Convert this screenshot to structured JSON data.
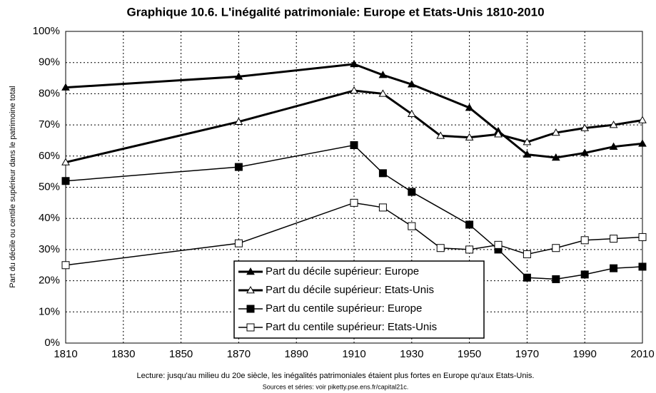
{
  "chart_data": {
    "type": "line",
    "title": "Graphique 10.6. L'inégalité patrimoniale: Europe et Etats-Unis 1810-2010",
    "y_label": "Part du décile ou centile supérieur dans le patrimoine total",
    "notes": [
      "Lecture: jusqu'au milieu du 20e siècle, les inégalités patrimoniales étaient plus fortes en Europe qu'aux Etats-Unis.",
      "Sources et séries: voir piketty.pse.ens.fr/capital21c."
    ],
    "xlim": [
      1810,
      2010
    ],
    "xticks": [
      1810,
      1830,
      1850,
      1870,
      1890,
      1910,
      1930,
      1950,
      1970,
      1990,
      2010
    ],
    "ylim": [
      0,
      100
    ],
    "yticks": [
      {
        "value": 0,
        "label": "0%"
      },
      {
        "value": 10,
        "label": "10%"
      },
      {
        "value": 20,
        "label": "20%"
      },
      {
        "value": 30,
        "label": "30%"
      },
      {
        "value": 40,
        "label": "40%"
      },
      {
        "value": 50,
        "label": "50%"
      },
      {
        "value": 60,
        "label": "60%"
      },
      {
        "value": 70,
        "label": "70%"
      },
      {
        "value": 80,
        "label": "80%"
      },
      {
        "value": 90,
        "label": "90%"
      },
      {
        "value": 100,
        "label": "100%"
      }
    ],
    "grid": true,
    "legend": "bottom",
    "series": [
      {
        "name": "Part du décile supérieur: Europe",
        "color": "#000000",
        "marker": "triangle",
        "filled": true,
        "line_width": 3,
        "x": [
          1810,
          1870,
          1910,
          1920,
          1930,
          1950,
          1960,
          1970,
          1980,
          1990,
          2000,
          2010
        ],
        "values": [
          82,
          85.5,
          89.5,
          86,
          83,
          75.5,
          68,
          60.5,
          59.5,
          61,
          63,
          64
        ]
      },
      {
        "name": "Part du décile supérieur: Etats-Unis",
        "color": "#000000",
        "marker": "triangle",
        "filled": false,
        "line_width": 3,
        "x": [
          1810,
          1870,
          1910,
          1920,
          1930,
          1940,
          1950,
          1960,
          1970,
          1980,
          1990,
          2000,
          2010
        ],
        "values": [
          58,
          71,
          81,
          80,
          73.5,
          66.5,
          66,
          67,
          64.5,
          67.5,
          69,
          70,
          71.5
        ]
      },
      {
        "name": "Part du centile supérieur: Europe",
        "color": "#000000",
        "marker": "square",
        "filled": true,
        "line_width": 1.5,
        "x": [
          1810,
          1870,
          1910,
          1920,
          1930,
          1950,
          1960,
          1970,
          1980,
          1990,
          2000,
          2010
        ],
        "values": [
          52,
          56.5,
          63.5,
          54.5,
          48.5,
          38,
          30,
          21,
          20.5,
          22,
          24,
          24.5
        ]
      },
      {
        "name": "Part du centile supérieur: Etats-Unis",
        "color": "#000000",
        "marker": "square",
        "filled": false,
        "line_width": 1.5,
        "x": [
          1810,
          1870,
          1910,
          1920,
          1930,
          1940,
          1950,
          1960,
          1970,
          1980,
          1990,
          2000,
          2010
        ],
        "values": [
          25,
          32,
          45,
          43.5,
          37.5,
          30.5,
          30,
          31.5,
          28.5,
          30.5,
          33,
          33.5,
          34
        ]
      }
    ]
  }
}
